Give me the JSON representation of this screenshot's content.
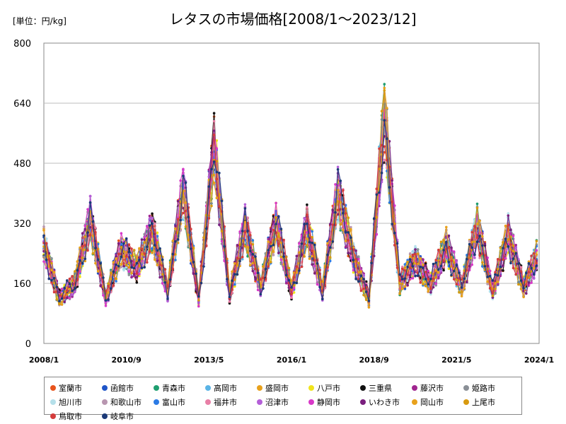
{
  "chart_data": {
    "type": "line",
    "title": "レタスの市場価格[2008/1～2023/12]",
    "unit_label": "[単位：円/kg]",
    "ylim": [
      0,
      800
    ],
    "yticks": [
      "0",
      "160",
      "320",
      "480",
      "640",
      "800"
    ],
    "ytick_values": [
      0,
      160,
      320,
      480,
      640,
      800
    ],
    "x_range": [
      "2008/1",
      "2024/1"
    ],
    "xticks": [
      "2008/1",
      "2010/9",
      "2013/5",
      "2016/1",
      "2018/9",
      "2021/5",
      "2024/1"
    ],
    "grid": "horizontal",
    "legend_position": "bottom",
    "base_series": {
      "x": [
        "2008/1",
        "2008/7",
        "2009/1",
        "2009/7",
        "2010/1",
        "2010/7",
        "2011/1",
        "2011/7",
        "2012/1",
        "2012/7",
        "2013/1",
        "2013/7",
        "2014/1",
        "2014/7",
        "2015/1",
        "2015/7",
        "2016/1",
        "2016/7",
        "2017/1",
        "2017/7",
        "2018/1",
        "2018/7",
        "2019/1",
        "2019/7",
        "2020/1",
        "2020/7",
        "2021/1",
        "2021/7",
        "2022/1",
        "2022/7",
        "2023/1",
        "2023/7",
        "2023/12"
      ],
      "values": [
        260,
        120,
        160,
        330,
        120,
        250,
        200,
        300,
        140,
        410,
        120,
        520,
        130,
        310,
        150,
        320,
        140,
        310,
        140,
        400,
        230,
        120,
        600,
        160,
        220,
        160,
        260,
        150,
        310,
        140,
        290,
        150,
        230
      ]
    },
    "series": [
      {
        "name": "室蘭市",
        "color": "#e8541c"
      },
      {
        "name": "函館市",
        "color": "#1f55c8"
      },
      {
        "name": "青森市",
        "color": "#1f9e70"
      },
      {
        "name": "高岡市",
        "color": "#5ab4e6"
      },
      {
        "name": "盛岡市",
        "color": "#e8a11c"
      },
      {
        "name": "八戸市",
        "color": "#f0e41c"
      },
      {
        "name": "三重県",
        "color": "#111111"
      },
      {
        "name": "藤沢市",
        "color": "#a0268f"
      },
      {
        "name": "姫路市",
        "color": "#8a8f96"
      },
      {
        "name": "旭川市",
        "color": "#b5e0ea"
      },
      {
        "name": "和歌山市",
        "color": "#b896b0"
      },
      {
        "name": "富山市",
        "color": "#2c7be5"
      },
      {
        "name": "福井市",
        "color": "#e87fa6"
      },
      {
        "name": "沼津市",
        "color": "#b45fd8"
      },
      {
        "name": "静岡市",
        "color": "#d838c8"
      },
      {
        "name": "いわき市",
        "color": "#7a1f7e"
      },
      {
        "name": "岡山市",
        "color": "#e8a11c"
      },
      {
        "name": "上尾市",
        "color": "#d89a10"
      },
      {
        "name": "鳥取市",
        "color": "#d43c3c"
      },
      {
        "name": "岐阜市",
        "color": "#1c3a78"
      }
    ]
  }
}
